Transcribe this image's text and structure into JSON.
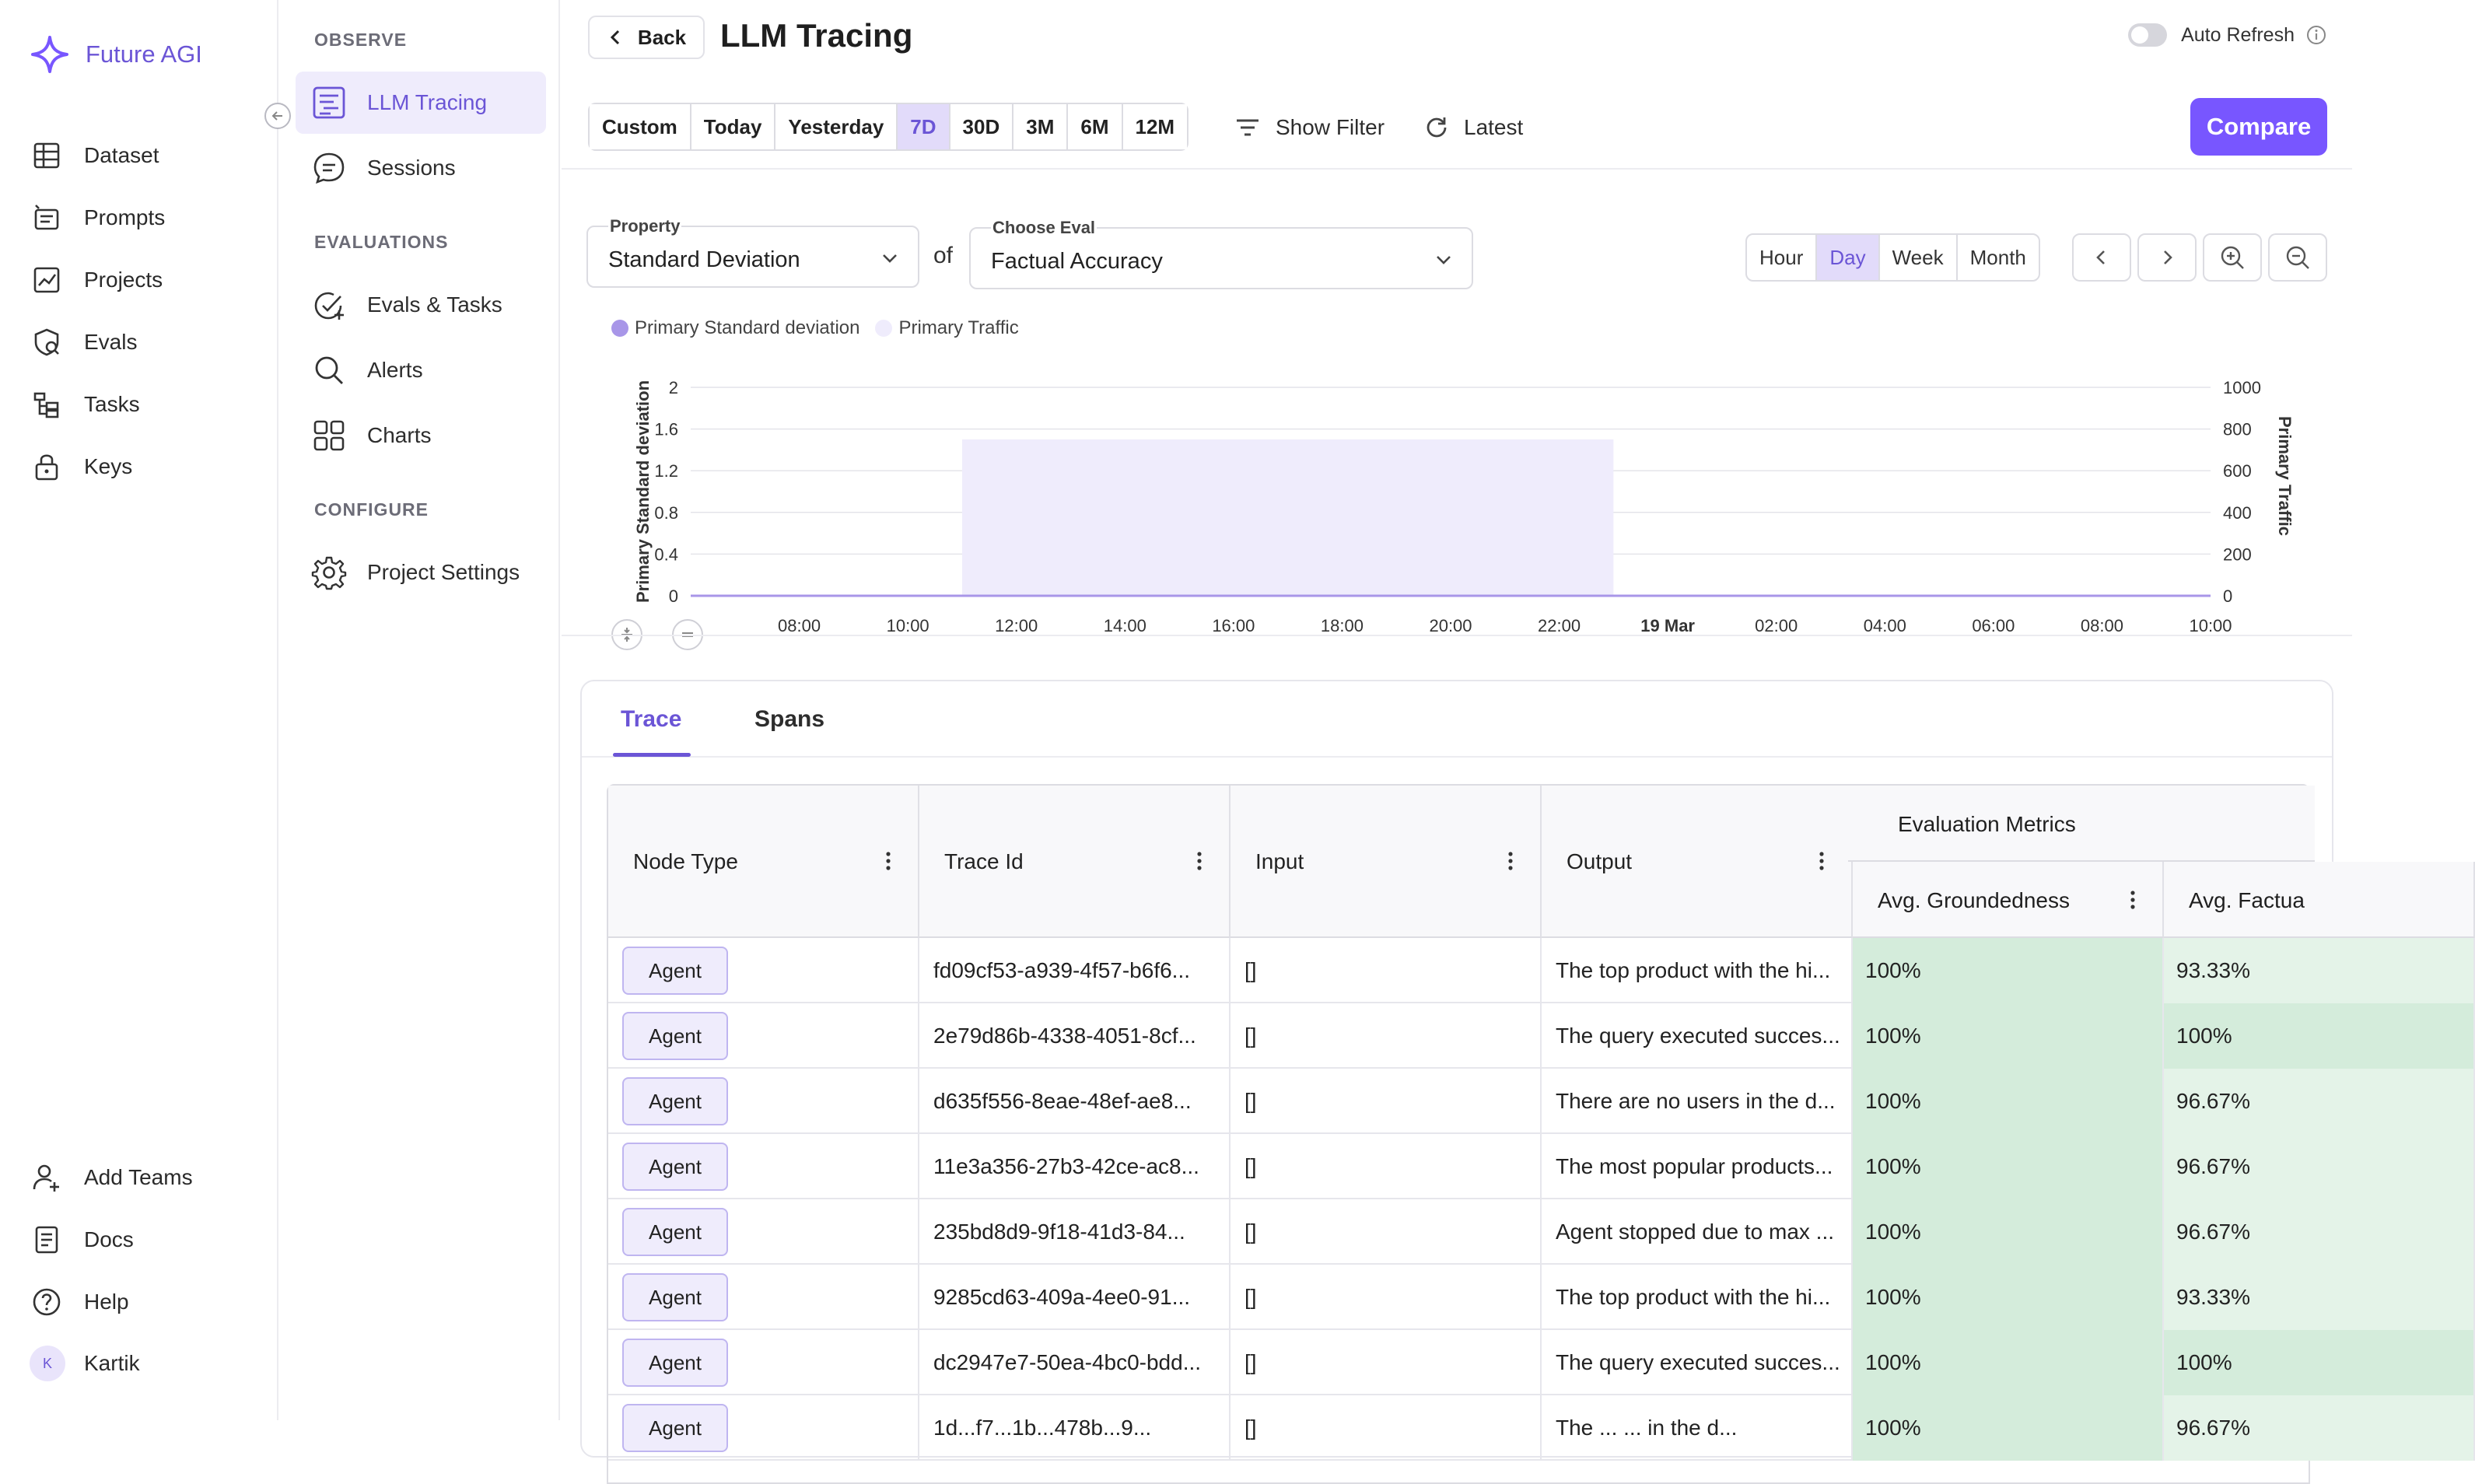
{
  "brand": {
    "name": "Future AGI"
  },
  "sidebar": {
    "items": [
      {
        "label": "Dataset",
        "icon": "table-icon"
      },
      {
        "label": "Prompts",
        "icon": "prompts-icon"
      },
      {
        "label": "Projects",
        "icon": "chart-line-icon"
      },
      {
        "label": "Evals",
        "icon": "evals-icon"
      },
      {
        "label": "Tasks",
        "icon": "tasks-icon"
      },
      {
        "label": "Keys",
        "icon": "lock-icon"
      }
    ],
    "bottom": [
      {
        "label": "Add Teams",
        "icon": "add-user-icon"
      },
      {
        "label": "Docs",
        "icon": "docs-icon"
      },
      {
        "label": "Help",
        "icon": "help-icon"
      },
      {
        "label": "Kartik",
        "avatar": "K"
      }
    ]
  },
  "subnav": {
    "observe": "OBSERVE",
    "evaluations": "EVALUATIONS",
    "configure": "CONFIGURE",
    "items": {
      "llm_tracing": "LLM Tracing",
      "sessions": "Sessions",
      "evals_tasks": "Evals & Tasks",
      "alerts": "Alerts",
      "charts": "Charts",
      "project_settings": "Project Settings"
    }
  },
  "header": {
    "back": "Back",
    "title": "LLM Tracing",
    "auto_refresh": "Auto Refresh",
    "auto_refresh_on": false
  },
  "toolbar": {
    "ranges": [
      "Custom",
      "Today",
      "Yesterday",
      "7D",
      "30D",
      "3M",
      "6M",
      "12M"
    ],
    "active_range": "7D",
    "show_filter": "Show Filter",
    "latest": "Latest",
    "compare": "Compare"
  },
  "controls": {
    "property_label": "Property",
    "property_value": "Standard Deviation",
    "of": "of",
    "eval_label": "Choose Eval",
    "eval_value": "Factual Accuracy",
    "granularity": [
      "Hour",
      "Day",
      "Week",
      "Month"
    ],
    "active_granularity": "Day"
  },
  "colors": {
    "accent": "#7856ff",
    "accent_text": "#6b55d6",
    "traffic_fill": "#efecfc",
    "metric_green": "#d4ecdb"
  },
  "chart_data": {
    "type": "area",
    "legend": [
      "Primary Standard deviation",
      "Primary Traffic"
    ],
    "ylabel": "Primary Standard deviation",
    "y2label": "Primary Traffic",
    "ylim": [
      0,
      2
    ],
    "y2lim": [
      0,
      1000
    ],
    "yticks": [
      "0",
      "0.4",
      "0.8",
      "1.2",
      "1.6",
      "2"
    ],
    "y2ticks": [
      "0",
      "200",
      "400",
      "600",
      "800",
      "1000"
    ],
    "xticks": [
      "08:00",
      "10:00",
      "12:00",
      "14:00",
      "16:00",
      "18:00",
      "20:00",
      "22:00",
      "19 Mar",
      "02:00",
      "04:00",
      "06:00",
      "08:00",
      "10:00"
    ],
    "x_range_hours": [
      0,
      28
    ],
    "grid": true,
    "series": [
      {
        "name": "Primary Traffic",
        "x_start_hours": 5,
        "x_end_hours": 17,
        "value": 750
      },
      {
        "name": "Primary Standard deviation",
        "value": 0
      }
    ]
  },
  "tabs": [
    "Trace",
    "Spans"
  ],
  "table": {
    "columns": [
      "Node Type",
      "Trace Id",
      "Input",
      "Output"
    ],
    "group": "Evaluation Metrics",
    "metric_columns": [
      "Avg. Groundedness",
      "Avg. Factua"
    ],
    "rows": [
      {
        "node": "Agent",
        "trace": "fd09cf53-a939-4f57-b6f6...",
        "input": "[]",
        "output": "The top product with the hi...",
        "m1": "100%",
        "m2": "93.33%"
      },
      {
        "node": "Agent",
        "trace": "2e79d86b-4338-4051-8cf...",
        "input": "[]",
        "output": "The query executed succes...",
        "m1": "100%",
        "m2": "100%"
      },
      {
        "node": "Agent",
        "trace": "d635f556-8eae-48ef-ae8...",
        "input": "[]",
        "output": "There are no users in the d...",
        "m1": "100%",
        "m2": "96.67%"
      },
      {
        "node": "Agent",
        "trace": "11e3a356-27b3-42ce-ac8...",
        "input": "[]",
        "output": "The most popular products...",
        "m1": "100%",
        "m2": "96.67%"
      },
      {
        "node": "Agent",
        "trace": "235bd8d9-9f18-41d3-84...",
        "input": "[]",
        "output": "Agent stopped due to max ...",
        "m1": "100%",
        "m2": "96.67%"
      },
      {
        "node": "Agent",
        "trace": "9285cd63-409a-4ee0-91...",
        "input": "[]",
        "output": "The top product with the hi...",
        "m1": "100%",
        "m2": "93.33%"
      },
      {
        "node": "Agent",
        "trace": "dc2947e7-50ea-4bc0-bdd...",
        "input": "[]",
        "output": "The query executed succes...",
        "m1": "100%",
        "m2": "100%"
      },
      {
        "node": "Agent",
        "trace": "1d...f7...1b...478b...9...",
        "input": "[]",
        "output": "The ... ... in the d...",
        "m1": "100%",
        "m2": "96.67%"
      }
    ]
  }
}
